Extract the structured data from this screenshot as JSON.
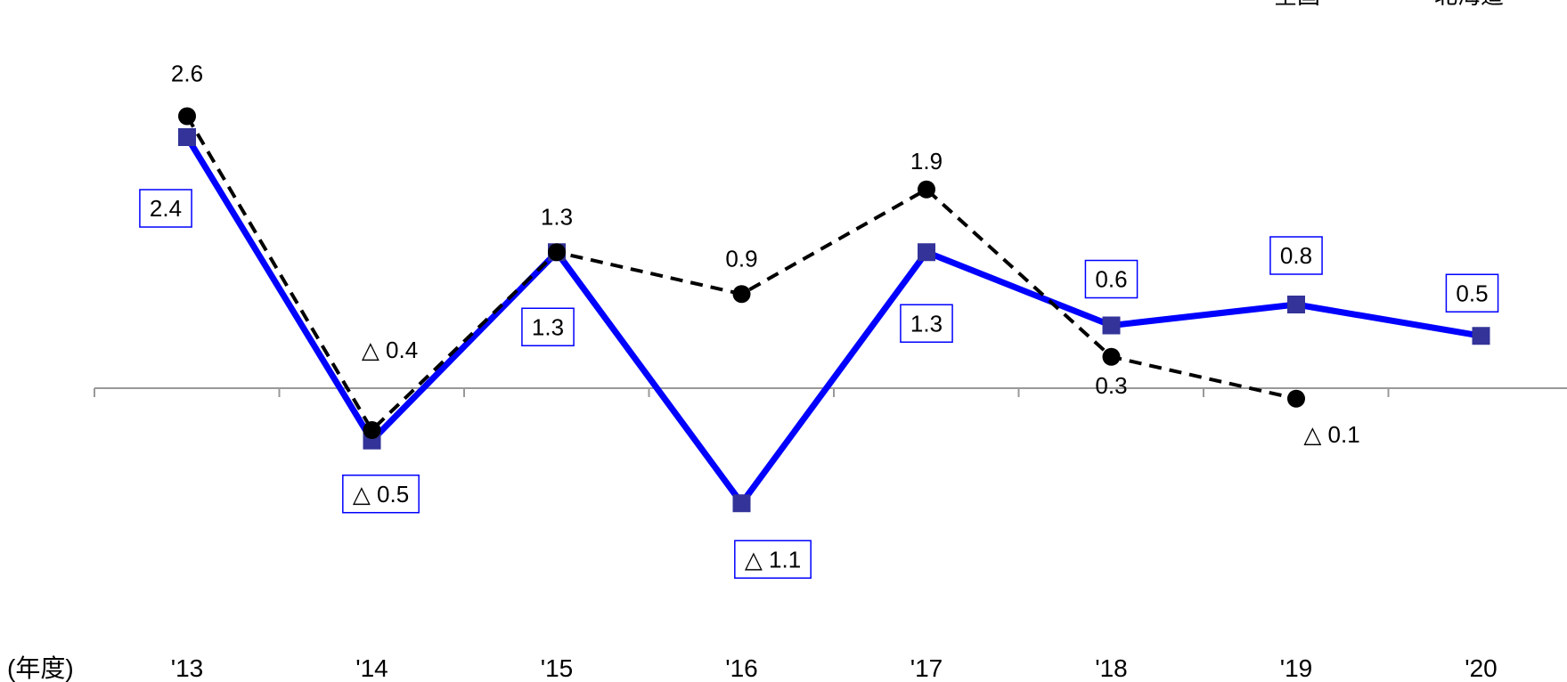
{
  "chart_data": {
    "type": "line",
    "categories": [
      "'13",
      "'14",
      "'15",
      "'16",
      "'17",
      "'18",
      "'19",
      "'20"
    ],
    "xlabel": "(年度)",
    "ylim": [
      -1.4,
      3.0
    ],
    "grid": false,
    "legend_position": "top-right",
    "series": [
      {
        "name": "全国",
        "values": [
          2.6,
          -0.4,
          1.3,
          0.9,
          1.9,
          0.3,
          -0.1,
          null
        ],
        "labels": [
          "2.6",
          "△ 0.4",
          "1.3",
          "0.9",
          "1.9",
          "0.3",
          "△ 0.1",
          ""
        ],
        "color": "#000000",
        "style": "dashed",
        "marker": "circle"
      },
      {
        "name": "北海道",
        "values": [
          2.4,
          -0.5,
          1.3,
          -1.1,
          1.3,
          0.6,
          0.8,
          0.5
        ],
        "labels": [
          "2.4",
          "△ 0.5",
          "1.3",
          "△ 1.1",
          "1.3",
          "0.6",
          "0.8",
          "0.5"
        ],
        "color": "#0000ff",
        "marker_color": "#333399",
        "style": "solid",
        "marker": "square"
      }
    ]
  }
}
